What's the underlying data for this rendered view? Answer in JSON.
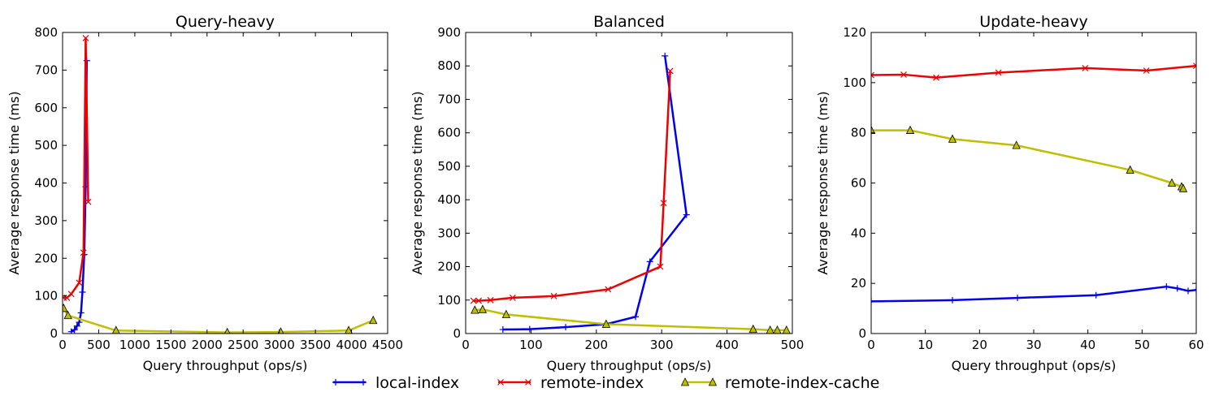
{
  "chart_data": [
    {
      "type": "line",
      "title": "Query-heavy",
      "xlabel": "Query throughput (ops/s)",
      "ylabel": "Average response time (ms)",
      "xlim": [
        0,
        4500
      ],
      "ylim": [
        0,
        800
      ],
      "xticks": [
        0,
        500,
        1000,
        1500,
        2000,
        2500,
        3000,
        3500,
        4000,
        4500
      ],
      "yticks": [
        0,
        100,
        200,
        300,
        400,
        500,
        600,
        700,
        800
      ],
      "xtick_labels": [
        "0",
        "500",
        "1000",
        "1500",
        "2000",
        "2500",
        "3000",
        "3500",
        "4000",
        "4500"
      ],
      "ytick_labels": [
        "0",
        "100",
        "200",
        "300",
        "400",
        "500",
        "600",
        "700",
        "800"
      ],
      "grid": false,
      "series": [
        {
          "name": "local-index",
          "color": "#0000ee",
          "marker": "plus",
          "points": [
            [
              120,
              5
            ],
            [
              165,
              10
            ],
            [
              200,
              20
            ],
            [
              230,
              30
            ],
            [
              255,
              55
            ],
            [
              275,
              110
            ],
            [
              300,
              210
            ],
            [
              320,
              390
            ],
            [
              335,
              725
            ]
          ]
        },
        {
          "name": "remote-index",
          "color": "#ee0000",
          "marker": "x",
          "points": [
            [
              15,
              95
            ],
            [
              60,
              95
            ],
            [
              120,
              105
            ],
            [
              230,
              135
            ],
            [
              290,
              215
            ],
            [
              320,
              785
            ],
            [
              355,
              350
            ]
          ]
        },
        {
          "name": "remote-index-cache",
          "color": "#bfbf00",
          "marker": "triangle",
          "points": [
            [
              15,
              67
            ],
            [
              75,
              48
            ],
            [
              740,
              8
            ],
            [
              2280,
              3
            ],
            [
              3020,
              4
            ],
            [
              3960,
              8
            ],
            [
              4300,
              35
            ]
          ]
        }
      ]
    },
    {
      "type": "line",
      "title": "Balanced",
      "xlabel": "Query throughput (ops/s)",
      "ylabel": "Average response time (ms)",
      "xlim": [
        0,
        500
      ],
      "ylim": [
        0,
        900
      ],
      "xticks": [
        0,
        100,
        200,
        300,
        400,
        500
      ],
      "yticks": [
        0,
        100,
        200,
        300,
        400,
        500,
        600,
        700,
        800,
        900
      ],
      "xtick_labels": [
        "0",
        "100",
        "200",
        "300",
        "400",
        "500"
      ],
      "ytick_labels": [
        "0",
        "100",
        "200",
        "300",
        "400",
        "500",
        "600",
        "700",
        "800",
        "900"
      ],
      "grid": false,
      "series": [
        {
          "name": "local-index",
          "color": "#0000ee",
          "marker": "plus",
          "points": [
            [
              57,
              12
            ],
            [
              98,
              13
            ],
            [
              153,
              19
            ],
            [
              215,
              28
            ],
            [
              260,
              50
            ],
            [
              282,
              215
            ],
            [
              338,
              355
            ],
            [
              305,
              830
            ]
          ]
        },
        {
          "name": "remote-index",
          "color": "#ee0000",
          "marker": "x",
          "points": [
            [
              12,
              98
            ],
            [
              20,
              98
            ],
            [
              38,
              100
            ],
            [
              72,
              107
            ],
            [
              135,
              112
            ],
            [
              218,
              132
            ],
            [
              298,
              200
            ],
            [
              303,
              390
            ],
            [
              313,
              785
            ]
          ]
        },
        {
          "name": "remote-index-cache",
          "color": "#bfbf00",
          "marker": "triangle",
          "points": [
            [
              14,
              70
            ],
            [
              26,
              72
            ],
            [
              62,
              57
            ],
            [
              215,
              28
            ],
            [
              440,
              13
            ],
            [
              466,
              10
            ],
            [
              477,
              10
            ],
            [
              491,
              10
            ]
          ]
        }
      ]
    },
    {
      "type": "line",
      "title": "Update-heavy",
      "xlabel": "Query throughput (ops/s)",
      "ylabel": "Average response time (ms)",
      "xlim": [
        0,
        60
      ],
      "ylim": [
        0,
        120
      ],
      "xticks": [
        0,
        10,
        20,
        30,
        40,
        50,
        60
      ],
      "yticks": [
        0,
        20,
        40,
        60,
        80,
        100,
        120
      ],
      "xtick_labels": [
        "0",
        "10",
        "20",
        "30",
        "40",
        "50",
        "60"
      ],
      "ytick_labels": [
        "0",
        "20",
        "40",
        "60",
        "80",
        "100",
        "120"
      ],
      "grid": false,
      "series": [
        {
          "name": "local-index",
          "color": "#0000ee",
          "marker": "plus",
          "points": [
            [
              0,
              12.8
            ],
            [
              15,
              13.3
            ],
            [
              27,
              14.2
            ],
            [
              41.5,
              15.3
            ],
            [
              54.5,
              18.7
            ],
            [
              56.5,
              18
            ],
            [
              58.5,
              17
            ],
            [
              60,
              17.4
            ]
          ]
        },
        {
          "name": "remote-index",
          "color": "#ee0000",
          "marker": "x",
          "points": [
            [
              0,
              103
            ],
            [
              6,
              103.2
            ],
            [
              12,
              102
            ],
            [
              23.5,
              104
            ],
            [
              39.5,
              105.8
            ],
            [
              50.8,
              104.8
            ],
            [
              60,
              106.7
            ]
          ]
        },
        {
          "name": "remote-index-cache",
          "color": "#bfbf00",
          "marker": "triangle",
          "points": [
            [
              0,
              81
            ],
            [
              7.2,
              81
            ],
            [
              15,
              77.5
            ],
            [
              26.8,
              75
            ],
            [
              47.8,
              65.2
            ],
            [
              55.5,
              60
            ],
            [
              57.3,
              58.5
            ],
            [
              57.6,
              57.8
            ]
          ]
        }
      ]
    }
  ],
  "legend": {
    "position": "bottom-center",
    "items": [
      {
        "label": "local-index",
        "color": "#0000ee",
        "marker": "plus"
      },
      {
        "label": "remote-index",
        "color": "#ee0000",
        "marker": "x"
      },
      {
        "label": "remote-index-cache",
        "color": "#bfbf00",
        "marker": "triangle"
      }
    ]
  }
}
